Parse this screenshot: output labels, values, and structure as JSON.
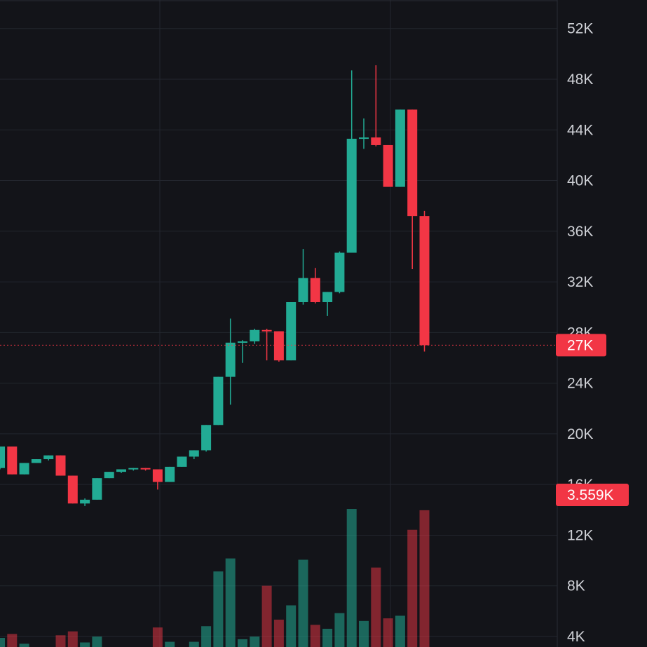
{
  "chart_data": {
    "type": "candlestick",
    "title": "",
    "xlabel": "",
    "ylabel": "",
    "ylim": [
      3000,
      55000
    ],
    "y_ticks": [
      {
        "value": 52000,
        "label": "52K"
      },
      {
        "value": 48000,
        "label": "48K"
      },
      {
        "value": 44000,
        "label": "44K"
      },
      {
        "value": 40000,
        "label": "40K"
      },
      {
        "value": 36000,
        "label": "36K"
      },
      {
        "value": 32000,
        "label": "32K"
      },
      {
        "value": 28000,
        "label": "28K"
      },
      {
        "value": 24000,
        "label": "24K"
      },
      {
        "value": 20000,
        "label": "20K"
      },
      {
        "value": 16000,
        "label": "16K"
      },
      {
        "value": 12000,
        "label": "12K"
      },
      {
        "value": 8000,
        "label": "8K"
      },
      {
        "value": 4000,
        "label": "4K"
      }
    ],
    "grid": true,
    "up_color": "#22ab94",
    "down_color": "#f23645",
    "candles": [
      {
        "o": 17300,
        "h": 19000,
        "l": 17200,
        "c": 19000
      },
      {
        "o": 19000,
        "h": 19000,
        "l": 16800,
        "c": 16800
      },
      {
        "o": 16800,
        "h": 17700,
        "l": 16800,
        "c": 17700
      },
      {
        "o": 17700,
        "h": 18000,
        "l": 17700,
        "c": 18000
      },
      {
        "o": 18000,
        "h": 18300,
        "l": 17900,
        "c": 18300
      },
      {
        "o": 18300,
        "h": 18300,
        "l": 16700,
        "c": 16700
      },
      {
        "o": 16700,
        "h": 16700,
        "l": 14500,
        "c": 14500
      },
      {
        "o": 14500,
        "h": 14900,
        "l": 14300,
        "c": 14800
      },
      {
        "o": 14800,
        "h": 16500,
        "l": 14800,
        "c": 16500
      },
      {
        "o": 16500,
        "h": 17000,
        "l": 16500,
        "c": 17000
      },
      {
        "o": 17000,
        "h": 17200,
        "l": 16900,
        "c": 17200
      },
      {
        "o": 17200,
        "h": 17300,
        "l": 17100,
        "c": 17300
      },
      {
        "o": 17300,
        "h": 17300,
        "l": 17100,
        "c": 17200
      },
      {
        "o": 17200,
        "h": 17200,
        "l": 15600,
        "c": 16200
      },
      {
        "o": 16200,
        "h": 17400,
        "l": 16200,
        "c": 17400
      },
      {
        "o": 17400,
        "h": 18200,
        "l": 17400,
        "c": 18200
      },
      {
        "o": 18200,
        "h": 18700,
        "l": 18000,
        "c": 18700
      },
      {
        "o": 18700,
        "h": 20700,
        "l": 18600,
        "c": 20700
      },
      {
        "o": 20700,
        "h": 24500,
        "l": 20700,
        "c": 24500
      },
      {
        "o": 24500,
        "h": 29100,
        "l": 22300,
        "c": 27200
      },
      {
        "o": 27200,
        "h": 27400,
        "l": 25600,
        "c": 27300
      },
      {
        "o": 27300,
        "h": 28300,
        "l": 27100,
        "c": 28200
      },
      {
        "o": 28200,
        "h": 28300,
        "l": 25800,
        "c": 28100
      },
      {
        "o": 28100,
        "h": 28100,
        "l": 25700,
        "c": 25800
      },
      {
        "o": 25800,
        "h": 30400,
        "l": 25800,
        "c": 30400
      },
      {
        "o": 30400,
        "h": 34600,
        "l": 30200,
        "c": 32300
      },
      {
        "o": 32300,
        "h": 33100,
        "l": 30300,
        "c": 30400
      },
      {
        "o": 30400,
        "h": 31200,
        "l": 29300,
        "c": 31200
      },
      {
        "o": 31200,
        "h": 34400,
        "l": 31100,
        "c": 34300
      },
      {
        "o": 34300,
        "h": 48700,
        "l": 34300,
        "c": 43300
      },
      {
        "o": 43300,
        "h": 44900,
        "l": 42500,
        "c": 43400
      },
      {
        "o": 43400,
        "h": 49100,
        "l": 42700,
        "c": 42800
      },
      {
        "o": 42800,
        "h": 42800,
        "l": 39500,
        "c": 39500
      },
      {
        "o": 39500,
        "h": 45600,
        "l": 39500,
        "c": 45600
      },
      {
        "o": 45600,
        "h": 45600,
        "l": 33000,
        "c": 37200
      },
      {
        "o": 37200,
        "h": 37600,
        "l": 26500,
        "c": 27000
      }
    ],
    "volume_axis": {
      "max_value": 12000,
      "badge_value": 3559
    },
    "volumes": [
      700,
      1000,
      250,
      0,
      0,
      900,
      1200,
      350,
      800,
      0,
      0,
      0,
      0,
      1500,
      400,
      0,
      400,
      1600,
      5800,
      6800,
      600,
      800,
      4700,
      2100,
      3200,
      6700,
      1700,
      1400,
      2600,
      10600,
      2000,
      6100,
      2200,
      2400,
      9000,
      10500
    ],
    "last_price": {
      "value": 27000,
      "label": "27K",
      "color": "#f23645"
    },
    "last_volume": {
      "label": "3.559K",
      "color": "#f23645"
    },
    "background_color": "#131419"
  }
}
